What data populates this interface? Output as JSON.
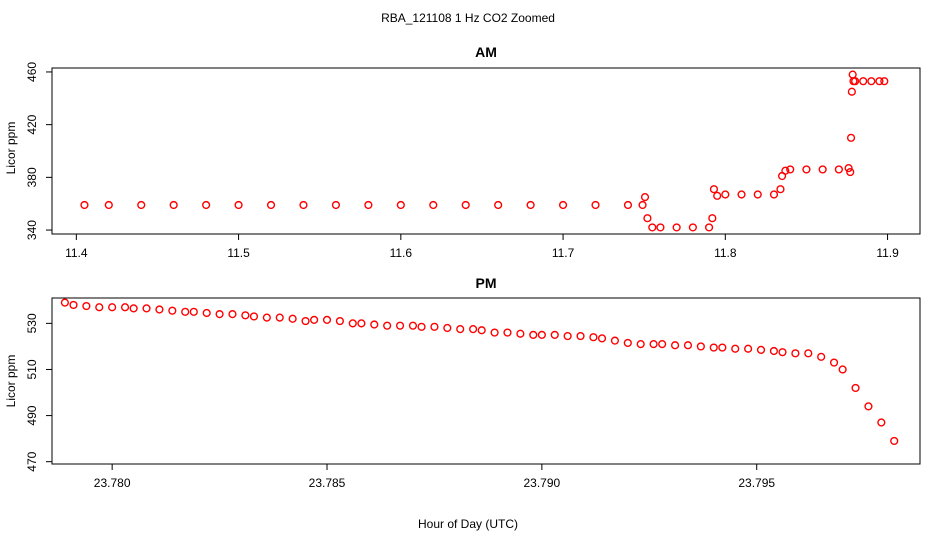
{
  "figure": {
    "title": "RBA_121108  1 Hz CO2 Zoomed",
    "xlabel": "Hour of Day (UTC)"
  },
  "chart_data": [
    {
      "type": "scatter",
      "title": "AM",
      "xlabel": "",
      "ylabel": "Licor ppm",
      "xlim": [
        11.385,
        11.92
      ],
      "ylim": [
        337,
        463
      ],
      "xticks": [
        11.4,
        11.5,
        11.6,
        11.7,
        11.8,
        11.9
      ],
      "xtick_labels": [
        "11.4",
        "11.5",
        "11.6",
        "11.7",
        "11.8",
        "11.9"
      ],
      "yticks": [
        340,
        380,
        420,
        460
      ],
      "ytick_labels": [
        "340",
        "380",
        "420",
        "460"
      ],
      "grid": false,
      "marker_color": "#ff0000",
      "series": [
        {
          "x": [
            11.405,
            11.42,
            11.44,
            11.46,
            11.48,
            11.5,
            11.52,
            11.54,
            11.56,
            11.58,
            11.6,
            11.62,
            11.64,
            11.66,
            11.68,
            11.7,
            11.72,
            11.74,
            11.749,
            11.7505,
            11.752,
            11.755,
            11.76,
            11.77,
            11.78,
            11.79,
            11.792,
            11.793,
            11.795,
            11.8,
            11.81,
            11.82,
            11.83,
            11.834,
            11.835,
            11.837,
            11.84,
            11.85,
            11.86,
            11.87,
            11.876,
            11.877,
            11.8775,
            11.878,
            11.8785,
            11.879,
            11.88,
            11.885,
            11.89,
            11.895,
            11.898
          ],
          "y": [
            359,
            359,
            359,
            359,
            359,
            359,
            359,
            359,
            359,
            359,
            359,
            359,
            359,
            359,
            359,
            359,
            359,
            359,
            359,
            365,
            349,
            342,
            342,
            342,
            342,
            342,
            349,
            371,
            366,
            367,
            367,
            367,
            367,
            371,
            381,
            385,
            386,
            386,
            386,
            386,
            387,
            384,
            410,
            445,
            458,
            453,
            453,
            453,
            453,
            453,
            453
          ]
        }
      ]
    },
    {
      "type": "scatter",
      "title": "PM",
      "xlabel": "Hour of Day (UTC)",
      "ylabel": "Licor ppm",
      "xlim": [
        23.7786,
        23.7988
      ],
      "ylim": [
        469,
        541
      ],
      "xticks": [
        23.78,
        23.785,
        23.79,
        23.795
      ],
      "xtick_labels": [
        "23.780",
        "23.785",
        "23.790",
        "23.795"
      ],
      "yticks": [
        470,
        490,
        510,
        530
      ],
      "ytick_labels": [
        "470",
        "490",
        "510",
        "530"
      ],
      "grid": false,
      "marker_color": "#ff0000",
      "series": [
        {
          "x": [
            23.7789,
            23.7791,
            23.7794,
            23.7797,
            23.78,
            23.7803,
            23.7805,
            23.7808,
            23.7811,
            23.7814,
            23.7817,
            23.7819,
            23.7822,
            23.7825,
            23.7828,
            23.7831,
            23.7833,
            23.7836,
            23.7839,
            23.7842,
            23.7845,
            23.7847,
            23.785,
            23.7853,
            23.7856,
            23.7858,
            23.7861,
            23.7864,
            23.7867,
            23.787,
            23.7872,
            23.7875,
            23.7878,
            23.7881,
            23.7884,
            23.7886,
            23.7889,
            23.7892,
            23.7895,
            23.7898,
            23.79,
            23.7903,
            23.7906,
            23.7909,
            23.7912,
            23.7914,
            23.7917,
            23.792,
            23.7923,
            23.7926,
            23.7928,
            23.7931,
            23.7934,
            23.7937,
            23.794,
            23.7942,
            23.7945,
            23.7948,
            23.7951,
            23.7954,
            23.7956,
            23.7959,
            23.7962,
            23.7965,
            23.7968,
            23.797,
            23.7973,
            23.7976,
            23.7979,
            23.7982
          ],
          "y": [
            539,
            538,
            537.5,
            537,
            537,
            537,
            536.5,
            536.5,
            536,
            535.5,
            535,
            535,
            534.5,
            534,
            534,
            533.5,
            533,
            532.5,
            532.5,
            532,
            531,
            531.5,
            531.5,
            531,
            530,
            530,
            529.5,
            529,
            529,
            529,
            528.5,
            528.5,
            528,
            527.5,
            527.5,
            527,
            526,
            526,
            525.5,
            525,
            525,
            525,
            524.5,
            524.5,
            524,
            523.5,
            522.5,
            521.5,
            521,
            521,
            521,
            520.5,
            520.5,
            520,
            519.5,
            519.5,
            519,
            519,
            518.5,
            518,
            517.5,
            517,
            517,
            515.5,
            513,
            510,
            502,
            494,
            487,
            479
          ]
        }
      ]
    }
  ]
}
